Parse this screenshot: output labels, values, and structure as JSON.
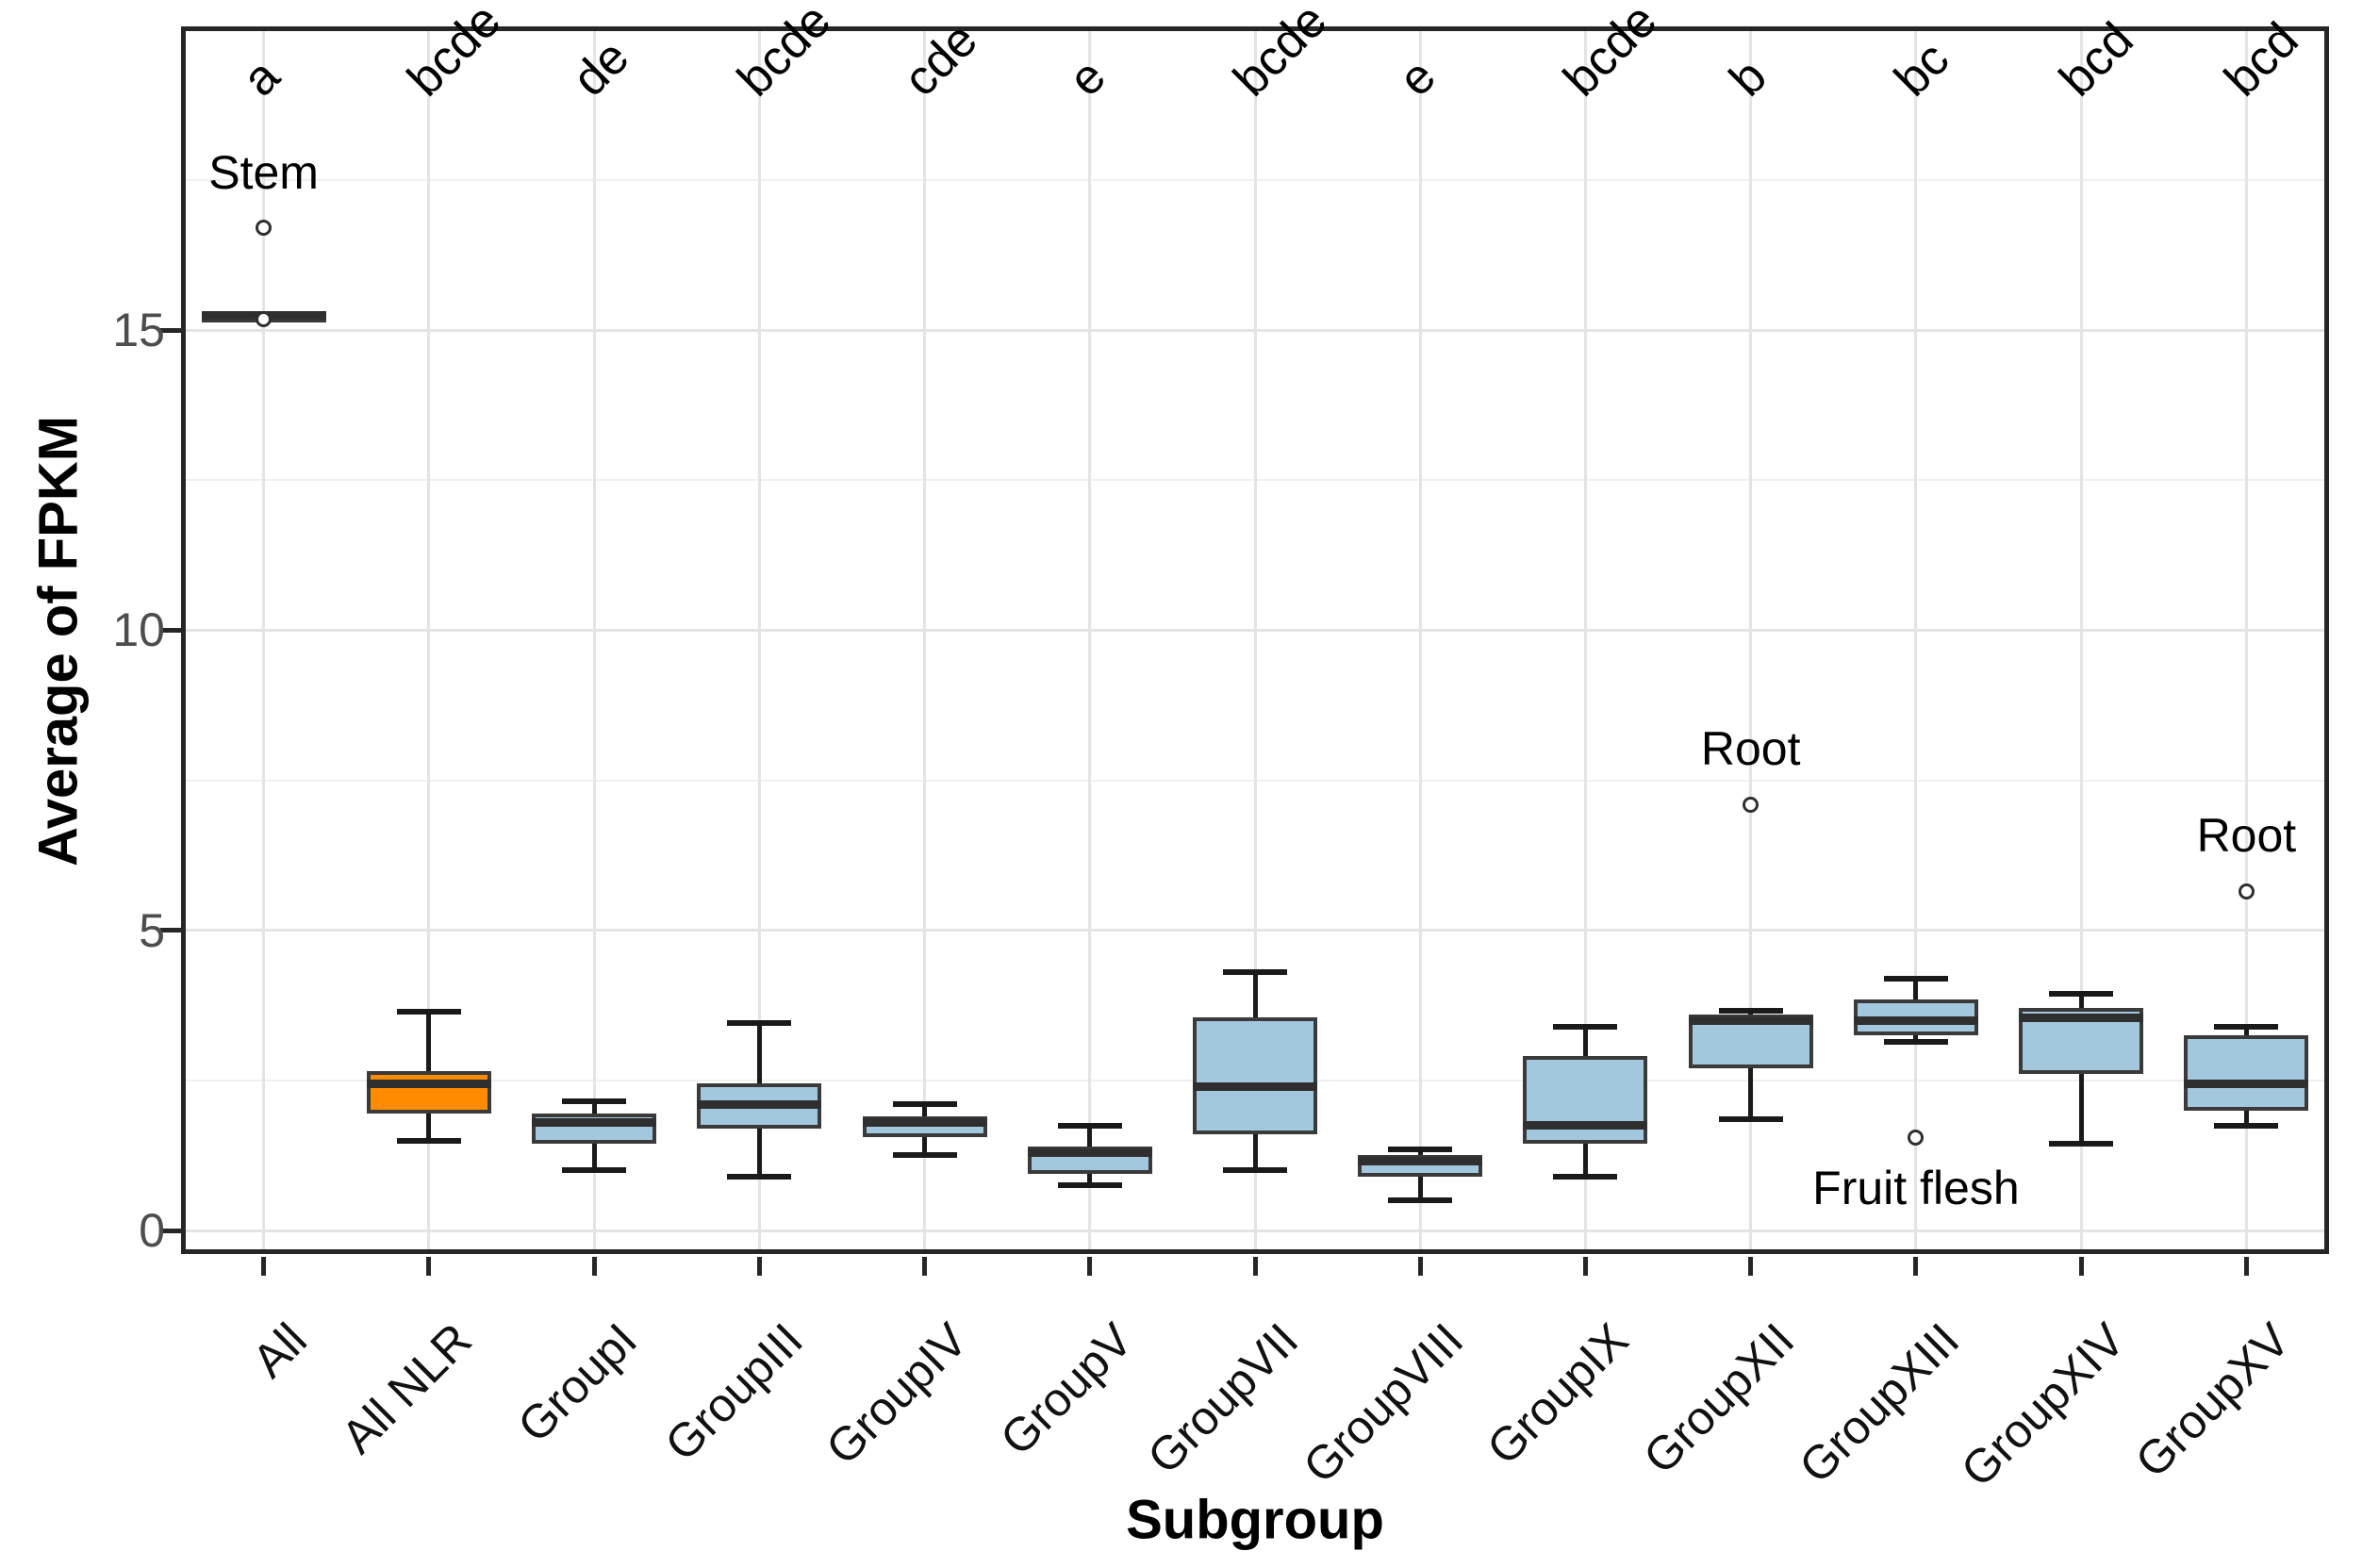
{
  "figure": {
    "x_axis_title": "Subgroup",
    "y_axis_title": "Average of FPKM"
  },
  "chart_data": {
    "type": "boxplot",
    "title": "",
    "xlabel": "Subgroup",
    "ylabel": "Average of FPKM",
    "ylim": [
      -0.4,
      20.0
    ],
    "y_major_ticks": [
      0,
      5,
      10,
      15
    ],
    "y_major_tick_labels": [
      "0",
      "5",
      "10",
      "15"
    ],
    "y_minor_ticks": [
      2.5,
      7.5,
      12.5,
      17.5
    ],
    "grid": "major-and-minor-horizontal, major-vertical-per-category",
    "legend": "none",
    "categories": [
      "All",
      "All NLR",
      "GroupI",
      "GroupIII",
      "GroupIV",
      "GroupV",
      "GroupVII",
      "GroupVIII",
      "GroupIX",
      "GroupXII",
      "GroupXIII",
      "GroupXIV",
      "GroupXV"
    ],
    "significance_letters": [
      "a",
      "bcde",
      "de",
      "bcde",
      "cde",
      "e",
      "bcde",
      "e",
      "bcde",
      "b",
      "bc",
      "bcd",
      "bcd"
    ],
    "boxes": [
      {
        "category": "All",
        "letter": "a",
        "min": 15.25,
        "q1": 15.25,
        "median": 15.25,
        "q3": 15.25,
        "max": 15.25,
        "fill": "#A3C8DE",
        "outliers": [
          {
            "value": 16.7,
            "label": "Stem",
            "label_side": "above"
          },
          {
            "value": 15.18,
            "label": "",
            "label_side": ""
          }
        ]
      },
      {
        "category": "All NLR",
        "letter": "bcde",
        "min": 1.5,
        "q1": 1.95,
        "median": 2.45,
        "q3": 2.65,
        "max": 3.65,
        "fill": "#FF8C00",
        "outliers": []
      },
      {
        "category": "GroupI",
        "letter": "de",
        "min": 1.0,
        "q1": 1.45,
        "median": 1.8,
        "q3": 1.95,
        "max": 2.15,
        "fill": "#A3C8DE",
        "outliers": []
      },
      {
        "category": "GroupIII",
        "letter": "bcde",
        "min": 0.9,
        "q1": 1.7,
        "median": 2.1,
        "q3": 2.45,
        "max": 3.45,
        "fill": "#A3C8DE",
        "outliers": []
      },
      {
        "category": "GroupIV",
        "letter": "cde",
        "min": 1.25,
        "q1": 1.55,
        "median": 1.8,
        "q3": 1.9,
        "max": 2.1,
        "fill": "#A3C8DE",
        "outliers": []
      },
      {
        "category": "GroupV",
        "letter": "e",
        "min": 0.75,
        "q1": 0.95,
        "median": 1.3,
        "q3": 1.4,
        "max": 1.75,
        "fill": "#A3C8DE",
        "outliers": []
      },
      {
        "category": "GroupVII",
        "letter": "bcde",
        "min": 1.0,
        "q1": 1.6,
        "median": 2.4,
        "q3": 3.55,
        "max": 4.3,
        "fill": "#A3C8DE",
        "outliers": []
      },
      {
        "category": "GroupVIII",
        "letter": "e",
        "min": 0.5,
        "q1": 0.9,
        "median": 1.15,
        "q3": 1.25,
        "max": 1.35,
        "fill": "#A3C8DE",
        "outliers": []
      },
      {
        "category": "GroupIX",
        "letter": "bcde",
        "min": 0.9,
        "q1": 1.45,
        "median": 1.75,
        "q3": 2.9,
        "max": 3.4,
        "fill": "#A3C8DE",
        "outliers": []
      },
      {
        "category": "GroupXII",
        "letter": "b",
        "min": 1.85,
        "q1": 2.7,
        "median": 3.5,
        "q3": 3.6,
        "max": 3.66,
        "fill": "#A3C8DE",
        "outliers": [
          {
            "value": 7.1,
            "label": "Root",
            "label_side": "above"
          }
        ]
      },
      {
        "category": "GroupXIII",
        "letter": "bc",
        "min": 3.14,
        "q1": 3.25,
        "median": 3.5,
        "q3": 3.85,
        "max": 4.2,
        "fill": "#A3C8DE",
        "outliers": [
          {
            "value": 1.55,
            "label": "Fruit flesh",
            "label_side": "below"
          }
        ]
      },
      {
        "category": "GroupXIV",
        "letter": "bcd",
        "min": 1.45,
        "q1": 2.6,
        "median": 3.55,
        "q3": 3.7,
        "max": 3.95,
        "fill": "#A3C8DE",
        "outliers": []
      },
      {
        "category": "GroupXV",
        "letter": "bcd",
        "min": 1.75,
        "q1": 2.0,
        "median": 2.45,
        "q3": 3.25,
        "max": 3.4,
        "fill": "#A3C8DE",
        "outliers": [
          {
            "value": 5.65,
            "label": "Root",
            "label_side": "above"
          }
        ]
      }
    ],
    "colors": {
      "highlight_box_fill": "#FF8C00",
      "default_box_fill": "#A3C8DE",
      "box_border": "#3A3A3A",
      "median_line": "#2F2F2F",
      "whisker": "#1A1A1A",
      "grid_major": "#E4E4E4",
      "grid_minor": "#F0F0F0",
      "panel_border": "#262626",
      "axis_tick_text": "#4D4D4D",
      "label_text": "#000000"
    }
  }
}
